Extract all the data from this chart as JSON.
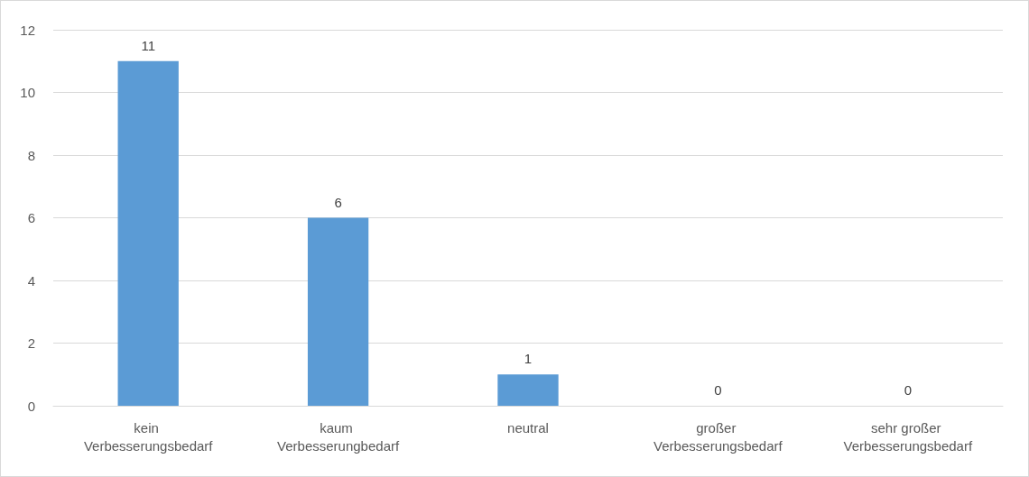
{
  "chart_data": {
    "type": "bar",
    "categories": [
      "kein Verbesserungsbedarf",
      "kaum Verbesserungbedarf",
      "neutral",
      "großer Verbesserungsbedarf",
      "sehr großer Verbesserungsbedarf"
    ],
    "values": [
      11,
      6,
      1,
      0,
      0
    ],
    "color": "#5b9bd5",
    "ylim": [
      0,
      12
    ],
    "yticks": [
      0,
      2,
      4,
      6,
      8,
      10,
      12
    ],
    "grid": "y",
    "data_labels": true
  }
}
